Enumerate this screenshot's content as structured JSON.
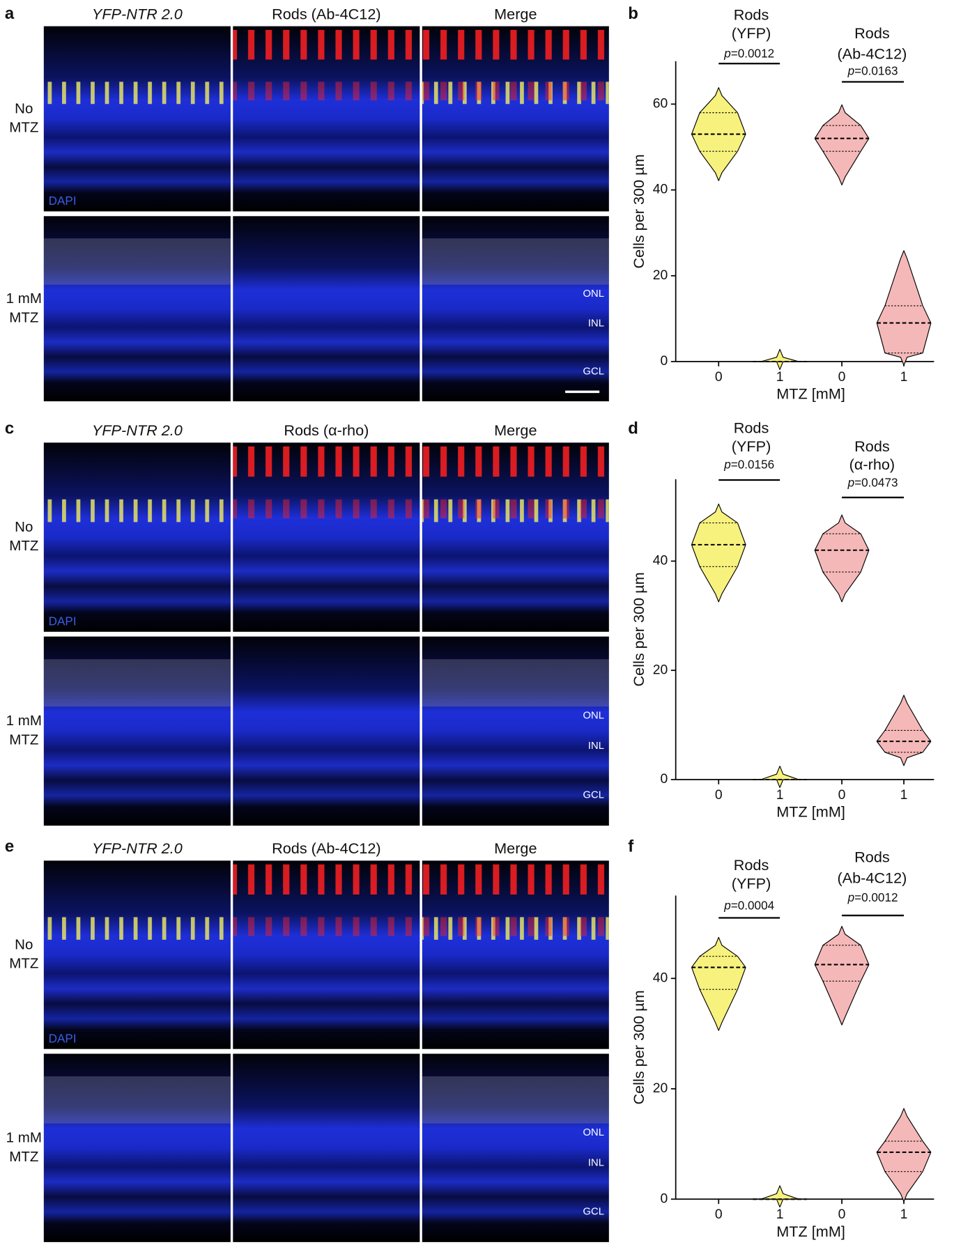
{
  "figure": {
    "panels": [
      {
        "letter": "a",
        "columns": [
          "YFP-NTR 2.0",
          "Rods (Ab-4C12)",
          "Merge"
        ],
        "rows": [
          [
            "No",
            "MTZ"
          ],
          [
            "1 mM",
            "MTZ"
          ]
        ],
        "stain": "DAPI",
        "layers": [
          "ONL",
          "INL",
          "GCL"
        ]
      },
      {
        "letter": "c",
        "columns": [
          "YFP-NTR 2.0",
          "Rods (α-rho)",
          "Merge"
        ],
        "rows": [
          [
            "No",
            "MTZ"
          ],
          [
            "1 mM",
            "MTZ"
          ]
        ],
        "stain": "DAPI",
        "layers": [
          "ONL",
          "INL",
          "GCL"
        ]
      },
      {
        "letter": "e",
        "columns": [
          "YFP-NTR 2.0",
          "Rods (Ab-4C12)",
          "Merge"
        ],
        "rows": [
          [
            "No",
            "MTZ"
          ],
          [
            "1 mM",
            "MTZ"
          ]
        ],
        "stain": "DAPI",
        "layers": [
          "ONL",
          "INL",
          "GCL"
        ]
      }
    ]
  },
  "chart_data": [
    {
      "type": "violin",
      "letter": "b",
      "ylabel": "Cells per 300 µm",
      "xlabel": "MTZ [mM]",
      "categories": [
        "0",
        "1",
        "0",
        "1"
      ],
      "group_titles": [
        [
          "Rods",
          "(YFP)"
        ],
        [
          "Rods",
          "(Ab-4C12)"
        ]
      ],
      "comparisons": [
        {
          "italic": "p",
          "text": "=0.0012"
        },
        {
          "italic": "p",
          "text": "=0.0163"
        }
      ],
      "colors": [
        "#f7f27e",
        "#f7f27e",
        "#f5b8b8",
        "#f5b8b8"
      ],
      "stats": [
        {
          "min": 44,
          "q1": 49,
          "median": 53,
          "q3": 58,
          "max": 62
        },
        {
          "min": 0,
          "q1": 0,
          "median": 0,
          "q3": 0,
          "max": 1
        },
        {
          "min": 43,
          "q1": 49,
          "median": 52,
          "q3": 55,
          "max": 58
        },
        {
          "min": 1,
          "q1": 2,
          "median": 9,
          "q3": 13,
          "max": 24
        }
      ],
      "ylim": [
        0,
        70
      ],
      "yticks": [
        0,
        20,
        40,
        60
      ]
    },
    {
      "type": "violin",
      "letter": "d",
      "ylabel": "Cells per 300 µm",
      "xlabel": "MTZ [mM]",
      "categories": [
        "0",
        "1",
        "0",
        "1"
      ],
      "group_titles": [
        [
          "Rods",
          "(YFP)"
        ],
        [
          "Rods",
          "(α-rho)"
        ]
      ],
      "comparisons": [
        {
          "italic": "p",
          "text": "=0.0156"
        },
        {
          "italic": "p",
          "text": "=0.0473"
        }
      ],
      "colors": [
        "#f7f27e",
        "#f7f27e",
        "#f5b8b8",
        "#f5b8b8"
      ],
      "stats": [
        {
          "min": 34,
          "q1": 39,
          "median": 43,
          "q3": 47,
          "max": 49
        },
        {
          "min": 0,
          "q1": 0,
          "median": 0,
          "q3": 0,
          "max": 1
        },
        {
          "min": 34,
          "q1": 38,
          "median": 42,
          "q3": 45,
          "max": 47
        },
        {
          "min": 4,
          "q1": 5,
          "median": 7,
          "q3": 9,
          "max": 14
        }
      ],
      "ylim": [
        0,
        55
      ],
      "yticks": [
        0,
        20,
        40
      ]
    },
    {
      "type": "violin",
      "letter": "f",
      "ylabel": "Cells per 300 µm",
      "xlabel": "MTZ [mM]",
      "categories": [
        "0",
        "1",
        "0",
        "1"
      ],
      "group_titles": [
        [
          "Rods",
          "(YFP)"
        ],
        [
          "Rods",
          "(Ab-4C12)"
        ]
      ],
      "comparisons": [
        {
          "italic": "p",
          "text": "=0.0004"
        },
        {
          "italic": "p",
          "text": "=0.0012"
        }
      ],
      "colors": [
        "#f7f27e",
        "#f7f27e",
        "#f5b8b8",
        "#f5b8b8"
      ],
      "stats": [
        {
          "min": 32,
          "q1": 38,
          "median": 42,
          "q3": 44,
          "max": 46
        },
        {
          "min": 0,
          "q1": 0,
          "median": 0,
          "q3": 0,
          "max": 1
        },
        {
          "min": 33,
          "q1": 39.5,
          "median": 42.5,
          "q3": 46,
          "max": 48
        },
        {
          "min": 1,
          "q1": 5,
          "median": 8.5,
          "q3": 10.5,
          "max": 15
        }
      ],
      "ylim": [
        0,
        55
      ],
      "yticks": [
        0,
        20,
        40
      ]
    }
  ]
}
